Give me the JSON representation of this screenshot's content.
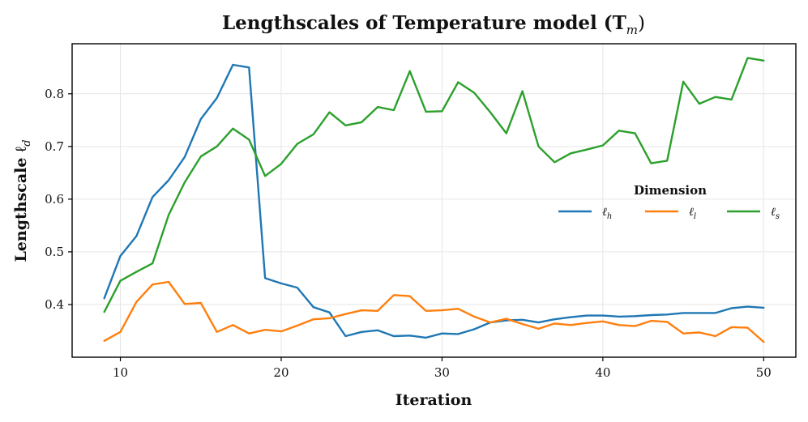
{
  "chart_data": {
    "type": "line",
    "title": "Lengthscales of Temperature model (T",
    "title_subscript": "m",
    "title_suffix": ")",
    "xlabel": "Iteration",
    "ylabel": "Lengthscale ℓ",
    "ylabel_subscript": "d",
    "xlim": [
      7,
      52
    ],
    "ylim": [
      0.3,
      0.895
    ],
    "xticks": [
      10,
      20,
      30,
      40,
      50
    ],
    "yticks": [
      0.4,
      0.5,
      0.6,
      0.7,
      0.8
    ],
    "ytick_labels": [
      "0.4",
      "0.5",
      "0.6",
      "0.7",
      "0.8"
    ],
    "grid": true,
    "legend": {
      "title": "Dimension",
      "position": "center-right",
      "columns": 3
    },
    "x": [
      9,
      10,
      11,
      12,
      13,
      14,
      15,
      16,
      17,
      18,
      19,
      20,
      21,
      22,
      23,
      24,
      25,
      26,
      27,
      28,
      29,
      30,
      31,
      32,
      33,
      34,
      35,
      36,
      37,
      38,
      39,
      40,
      41,
      42,
      43,
      44,
      45,
      46,
      47,
      48,
      49,
      50
    ],
    "series": [
      {
        "name": "ℓ",
        "sub": "h",
        "color": "#1f77b4",
        "values": [
          0.412,
          0.492,
          0.53,
          0.604,
          0.636,
          0.68,
          0.752,
          0.792,
          0.855,
          0.85,
          0.45,
          0.44,
          0.432,
          0.395,
          0.385,
          0.34,
          0.348,
          0.351,
          0.34,
          0.341,
          0.337,
          0.345,
          0.344,
          0.353,
          0.366,
          0.37,
          0.371,
          0.366,
          0.372,
          0.376,
          0.379,
          0.379,
          0.377,
          0.378,
          0.38,
          0.381,
          0.384,
          0.384,
          0.384,
          0.393,
          0.396,
          0.394
        ]
      },
      {
        "name": "ℓ",
        "sub": "l",
        "color": "#ff7f0e",
        "values": [
          0.331,
          0.348,
          0.405,
          0.438,
          0.443,
          0.401,
          0.403,
          0.348,
          0.361,
          0.345,
          0.352,
          0.349,
          0.36,
          0.372,
          0.374,
          0.382,
          0.389,
          0.388,
          0.418,
          0.416,
          0.388,
          0.389,
          0.392,
          0.377,
          0.366,
          0.373,
          0.363,
          0.354,
          0.364,
          0.361,
          0.365,
          0.368,
          0.361,
          0.359,
          0.369,
          0.367,
          0.345,
          0.347,
          0.34,
          0.357,
          0.356,
          0.329
        ]
      },
      {
        "name": "ℓ",
        "sub": "s",
        "color": "#2ca02c",
        "values": [
          0.386,
          0.445,
          0.462,
          0.478,
          0.57,
          0.632,
          0.681,
          0.7,
          0.734,
          0.713,
          0.644,
          0.667,
          0.705,
          0.723,
          0.765,
          0.74,
          0.746,
          0.775,
          0.769,
          0.843,
          0.766,
          0.767,
          0.822,
          0.802,
          0.765,
          0.725,
          0.805,
          0.7,
          0.67,
          0.687,
          0.694,
          0.702,
          0.73,
          0.725,
          0.668,
          0.673,
          0.823,
          0.781,
          0.794,
          0.789,
          0.868,
          0.863
        ]
      }
    ]
  }
}
